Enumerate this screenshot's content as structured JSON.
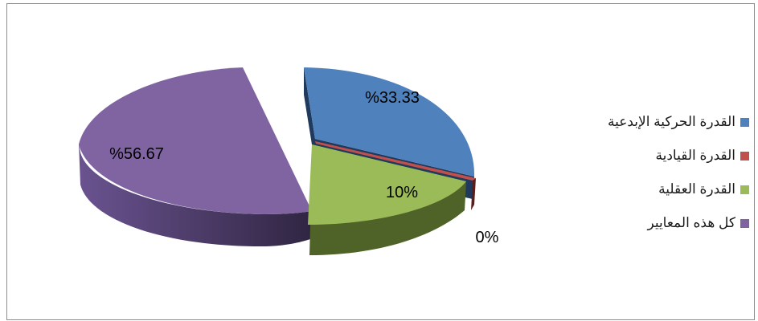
{
  "chart_data": {
    "type": "pie",
    "title": "",
    "legend_position": "right",
    "slices": [
      {
        "name": "القدرة الحركية الإبدعية",
        "value": 33.33,
        "label": "%33.33",
        "color": "#4F81BD",
        "side_color": "#2B4A72"
      },
      {
        "name": "القدرة القيادية",
        "value": 0,
        "label": "0%",
        "color": "#C0504D",
        "side_color": "#6E2523"
      },
      {
        "name": "القدرة العقلية",
        "value": 10,
        "label": "10%",
        "color": "#9BBB59",
        "side_color": "#4E6228"
      },
      {
        "name": "كل هذه المعايير",
        "value": 56.67,
        "label": "%56.67",
        "color": "#8064A2",
        "side_color": "#3E2F55"
      }
    ]
  }
}
